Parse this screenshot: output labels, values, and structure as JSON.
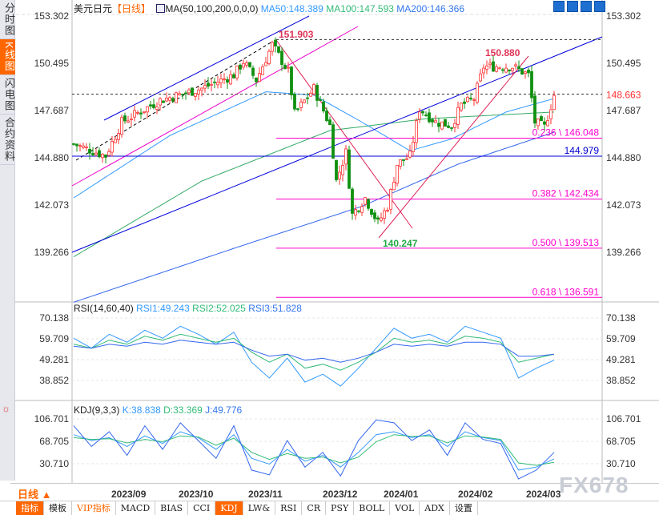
{
  "sidebar": {
    "tabs": [
      {
        "label": "分时图"
      },
      {
        "label": "K线图",
        "active": true
      },
      {
        "label": "闪电图"
      },
      {
        "label": "合约资料"
      }
    ]
  },
  "header": {
    "symbol": "美元日元",
    "period": "【日线】",
    "ma_title": "MA(50,100,200,0,0,0)",
    "ma50": "MA50:148.389",
    "ma100": "MA100:147.593",
    "ma200": "MA200:146.366"
  },
  "rsi_header": {
    "title": "RSI(14,60,40)",
    "rsi1": "RSI1:49.243",
    "rsi2": "RSI2:52.025",
    "rsi3": "RSI3:51.828"
  },
  "kdj_header": {
    "title": "KDJ(9,3,3)",
    "k": "K:38.838",
    "d": "D:33.369",
    "j": "J:49.776"
  },
  "datebar": {
    "period_label": "日线 ▲",
    "dates": [
      "2023/09",
      "2023/10",
      "2023/11",
      "2023/12",
      "2024/01",
      "2024/02",
      "2024/03"
    ]
  },
  "toolbar": [
    "指标",
    "模板",
    "VIP指标",
    "MACD",
    "BIAS",
    "CCI",
    "KDJ",
    "LW&",
    "RSI",
    "CR",
    "PSY",
    "BOLL",
    "VOL",
    "ADX",
    "设置"
  ],
  "watermark": "FX678",
  "colors": {
    "up": "#ff3333",
    "down": "#109010",
    "ma50": "#3399ff",
    "ma100": "#33aa66",
    "ma200": "#3366ee",
    "fib": "#ff00cc",
    "accent": "#ff6600"
  },
  "chart_data": [
    {
      "type": "candlestick",
      "title": "美元日元 日线",
      "ylim": [
        136.0,
        153.302
      ],
      "yticks": [
        "153.302",
        "150.495",
        "147.687",
        "144.880",
        "142.073",
        "139.266"
      ],
      "last_price": "148.663",
      "close_keypoints": [
        [
          0,
          145.7
        ],
        [
          10,
          145.0
        ],
        [
          15,
          147.0
        ],
        [
          27,
          148.3
        ],
        [
          40,
          149.0
        ],
        [
          50,
          149.8
        ],
        [
          53,
          150.6
        ],
        [
          57,
          149.5
        ],
        [
          62,
          151.6
        ],
        [
          67,
          150.0
        ],
        [
          69,
          147.5
        ],
        [
          75,
          149.0
        ],
        [
          80,
          146.8
        ],
        [
          82,
          143.5
        ],
        [
          85,
          145.2
        ],
        [
          87,
          141.5
        ],
        [
          91,
          142.5
        ],
        [
          95,
          141.0
        ],
        [
          98,
          142.0
        ],
        [
          101,
          144.5
        ],
        [
          105,
          145.0
        ],
        [
          108,
          147.8
        ],
        [
          113,
          147.0
        ],
        [
          118,
          146.8
        ],
        [
          121,
          148.0
        ],
        [
          125,
          148.4
        ],
        [
          128,
          150.3
        ],
        [
          137,
          150.3
        ],
        [
          142,
          149.8
        ],
        [
          144,
          147.0
        ],
        [
          147,
          146.7
        ],
        [
          150,
          148.6
        ]
      ],
      "ma50": [
        [
          0,
          142.5
        ],
        [
          30,
          146.2
        ],
        [
          60,
          148.8
        ],
        [
          75,
          148.6
        ],
        [
          90,
          147.0
        ],
        [
          105,
          145.3
        ],
        [
          118,
          146.0
        ],
        [
          135,
          147.6
        ],
        [
          150,
          148.4
        ]
      ],
      "ma100": [
        [
          0,
          139.0
        ],
        [
          40,
          143.5
        ],
        [
          80,
          146.5
        ],
        [
          110,
          147.2
        ],
        [
          150,
          147.6
        ]
      ],
      "ma200": [
        [
          0,
          136.3
        ],
        [
          50,
          139.5
        ],
        [
          90,
          142.0
        ],
        [
          120,
          144.5
        ],
        [
          150,
          146.4
        ]
      ],
      "annotations": [
        "151.903",
        "150.880",
        "140.247",
        "144.979"
      ],
      "fibonacci": [
        {
          "label": "0.236 \\ 146.048",
          "value": 146.048
        },
        {
          "label": "0.382 \\ 142.434",
          "value": 142.434
        },
        {
          "label": "0.500 \\ 139.513",
          "value": 139.513
        },
        {
          "label": "0.618 \\ 136.591",
          "value": 136.591
        }
      ]
    },
    {
      "type": "line",
      "title": "RSI(14,60,40)",
      "yticks": [
        "70.138",
        "59.709",
        "49.281",
        "38.852"
      ],
      "ylim": [
        30,
        75
      ],
      "series": [
        {
          "name": "RSI1",
          "values": [
            60,
            55,
            62,
            58,
            64,
            60,
            66,
            62,
            57,
            63,
            48,
            40,
            50,
            38,
            42,
            36,
            45,
            55,
            65,
            60,
            62,
            58,
            66,
            63,
            60,
            40,
            45,
            49
          ]
        },
        {
          "name": "RSI2",
          "values": [
            57,
            55,
            59,
            57,
            61,
            59,
            62,
            60,
            58,
            60,
            53,
            48,
            52,
            45,
            47,
            44,
            48,
            53,
            60,
            58,
            59,
            57,
            61,
            60,
            58,
            48,
            50,
            52
          ]
        },
        {
          "name": "RSI3",
          "values": [
            56,
            55,
            57,
            56,
            58,
            57,
            59,
            58,
            57,
            58,
            54,
            51,
            52,
            49,
            50,
            48,
            50,
            53,
            57,
            56,
            57,
            56,
            58,
            58,
            57,
            51,
            51,
            52
          ]
        }
      ]
    },
    {
      "type": "line",
      "title": "KDJ(9,3,3)",
      "yticks": [
        "106.701",
        "68.705",
        "30.710"
      ],
      "ylim": [
        0,
        120
      ],
      "series": [
        {
          "name": "K",
          "values": [
            80,
            70,
            75,
            60,
            78,
            65,
            85,
            75,
            55,
            80,
            40,
            30,
            55,
            35,
            45,
            25,
            50,
            80,
            85,
            75,
            80,
            60,
            85,
            75,
            70,
            20,
            25,
            39
          ]
        },
        {
          "name": "D",
          "values": [
            75,
            72,
            73,
            66,
            72,
            68,
            78,
            76,
            62,
            74,
            50,
            38,
            48,
            40,
            42,
            32,
            42,
            68,
            80,
            77,
            78,
            66,
            78,
            76,
            72,
            32,
            28,
            33
          ]
        },
        {
          "name": "J",
          "values": [
            95,
            60,
            85,
            45,
            95,
            55,
            100,
            70,
            40,
            95,
            20,
            12,
            70,
            25,
            50,
            10,
            70,
            105,
            100,
            70,
            88,
            45,
            100,
            72,
            65,
            5,
            20,
            50
          ]
        }
      ]
    }
  ]
}
